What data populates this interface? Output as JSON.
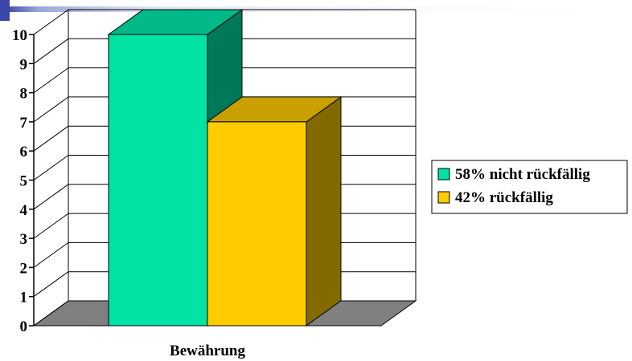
{
  "colors": {
    "background": "#ffffff",
    "floor": "#808080",
    "floor_edge": "#000000",
    "gridline": "#000000",
    "accent_banner": "#3a47a8"
  },
  "chart_data": {
    "type": "bar",
    "style": "3d-clustered-column",
    "categories": [
      "Bewährung"
    ],
    "xlabel": "",
    "ylabel": "",
    "ylim": [
      0,
      10
    ],
    "yticks": [
      0,
      1,
      2,
      3,
      4,
      5,
      6,
      7,
      8,
      9,
      10
    ],
    "grid": true,
    "legend": {
      "position": "right",
      "border": true
    },
    "series": [
      {
        "name": "58% nicht rückfällig",
        "values": [
          10
        ],
        "color": "#00e3a4",
        "side_color": "#00785a",
        "top_color": "#00b888"
      },
      {
        "name": "42% rückfällig",
        "values": [
          7
        ],
        "color": "#ffcc00",
        "side_color": "#826a00",
        "top_color": "#c9a000"
      }
    ]
  }
}
